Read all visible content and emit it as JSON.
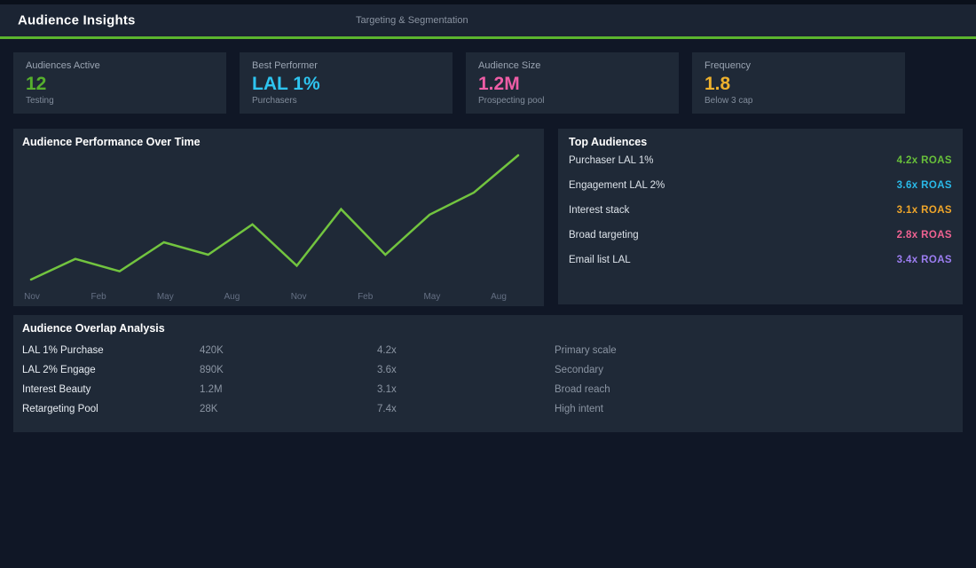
{
  "header": {
    "title": "Audience Insights",
    "subtitle": "Targeting & Segmentation",
    "accent_color": "#5cb52e"
  },
  "kpis": [
    {
      "label": "Audiences Active",
      "value": "12",
      "sub": "Testing",
      "color": "#56b02d"
    },
    {
      "label": "Best Performer",
      "value": "LAL 1%",
      "sub": "Purchasers",
      "color": "#2ec4f0"
    },
    {
      "label": "Audience Size",
      "value": "1.2M",
      "sub": "Prospecting pool",
      "color": "#ee5da6"
    },
    {
      "label": "Frequency",
      "value": "1.8",
      "sub": "Below 3 cap",
      "color": "#eeb12d"
    }
  ],
  "chart_data": {
    "type": "line",
    "title": "Audience Performance Over Time",
    "x_tick_labels": [
      "Nov",
      "Feb",
      "May",
      "Aug",
      "Nov",
      "Feb",
      "May",
      "Aug"
    ],
    "values": [
      10,
      25,
      16,
      37,
      28,
      50,
      20,
      61,
      28,
      57,
      73,
      100
    ],
    "value_scale": "relative index 0-100 (no y-axis labels shown)",
    "ylim": [
      0,
      110
    ],
    "grid": false,
    "legend": "none",
    "line_color": "#72c43f"
  },
  "top_audiences": {
    "title": "Top Audiences",
    "rows": [
      {
        "label": "Purchaser LAL 1%",
        "value": "4.2x ROAS",
        "color": "#68c03a"
      },
      {
        "label": "Engagement LAL 2%",
        "value": "3.6x ROAS",
        "color": "#2ab9e8"
      },
      {
        "label": "Interest stack",
        "value": "3.1x ROAS",
        "color": "#f0a62a"
      },
      {
        "label": "Broad targeting",
        "value": "2.8x ROAS",
        "color": "#f06292"
      },
      {
        "label": "Email list LAL",
        "value": "3.4x ROAS",
        "color": "#9d7ef2"
      }
    ]
  },
  "overlap": {
    "title": "Audience Overlap Analysis",
    "rows": [
      {
        "name": "LAL 1% Purchase",
        "size": "420K",
        "roas": "4.2x",
        "note": "Primary scale"
      },
      {
        "name": "LAL 2% Engage",
        "size": "890K",
        "roas": "3.6x",
        "note": "Secondary"
      },
      {
        "name": "Interest Beauty",
        "size": "1.2M",
        "roas": "3.1x",
        "note": "Broad reach"
      },
      {
        "name": "Retargeting Pool",
        "size": "28K",
        "roas": "7.4x",
        "note": "High intent"
      }
    ]
  }
}
